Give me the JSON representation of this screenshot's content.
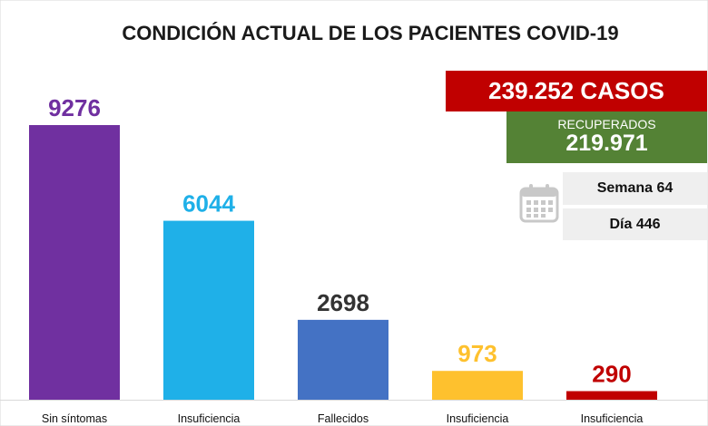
{
  "chart_data": {
    "type": "bar",
    "title": "CONDICIÓN ACTUAL DE LOS PACIENTES COVID-19",
    "categories": [
      "Sin síntomas",
      "Insuficiencia",
      "Fallecidos",
      "Insuficiencia",
      "Insuficiencia"
    ],
    "values": [
      9276,
      6044,
      2698,
      973,
      290
    ],
    "value_labels": [
      "9276",
      "6044",
      "2698",
      "973",
      "290"
    ],
    "bar_colors": [
      "#7030a0",
      "#1fb0e8",
      "#4472c4",
      "#fec12e",
      "#c00000"
    ],
    "value_label_colors": [
      "#7030a0",
      "#1fb0e8",
      "#333333",
      "#fec12e",
      "#c00000"
    ],
    "ylim": [
      0,
      9276
    ],
    "grid": false,
    "legend": "none"
  },
  "summary": {
    "total_cases": "239.252 CASOS",
    "total_cases_color": "#c00000",
    "recovered_label": "RECUPERADOS",
    "recovered_value": "219.971",
    "recovered_color": "#548235",
    "week": "Semana 64",
    "day": "Día 446",
    "calendar_icon": "calendar-icon"
  }
}
